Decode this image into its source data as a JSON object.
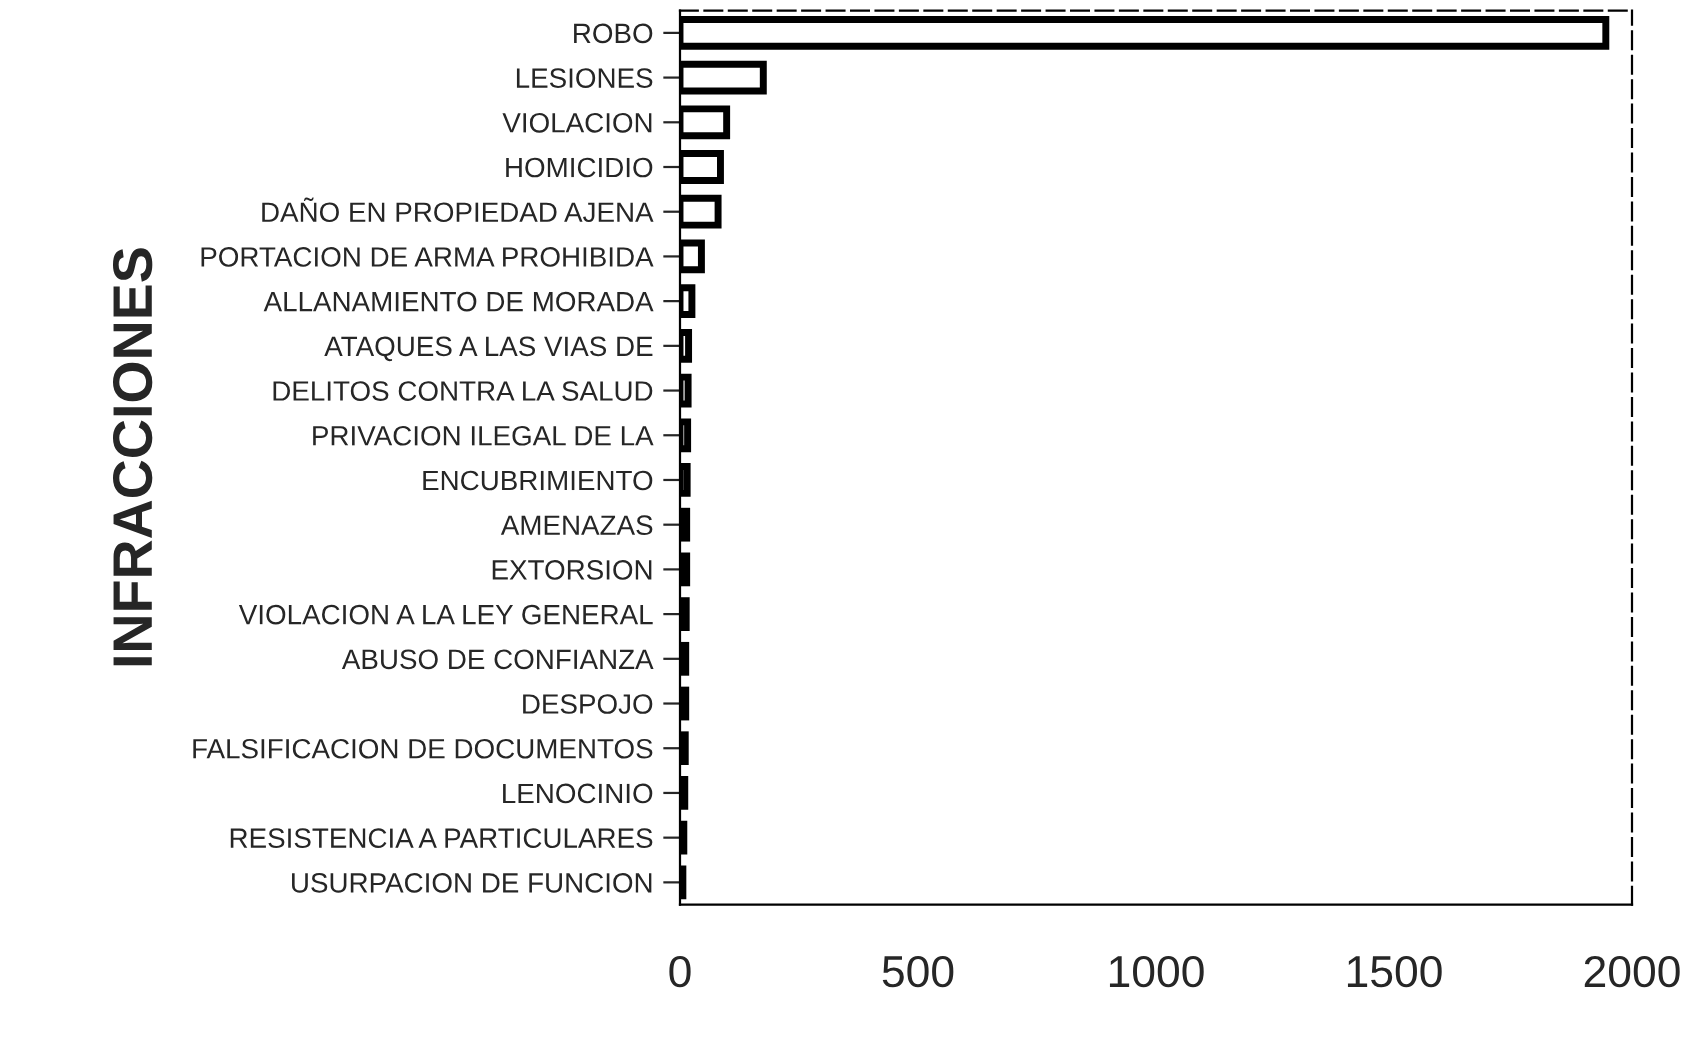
{
  "chart_data": {
    "type": "bar",
    "orientation": "horizontal",
    "ylabel": "INFRACCIONES",
    "categories": [
      "ROBO",
      "LESIONES",
      "VIOLACION",
      "HOMICIDIO",
      "DAÑO EN PROPIEDAD AJENA",
      "PORTACION DE ARMA PROHIBIDA",
      "ALLANAMIENTO DE MORADA",
      "ATAQUES A LAS VIAS DE",
      "DELITOS CONTRA LA SALUD",
      "PRIVACION ILEGAL DE LA",
      "ENCUBRIMIENTO",
      "AMENAZAS",
      "EXTORSION",
      "VIOLACION A LA LEY GENERAL",
      "ABUSO DE CONFIANZA",
      "DESPOJO",
      "FALSIFICACION DE DOCUMENTOS",
      "LENOCINIO",
      "RESISTENCIA A PARTICULARES",
      "USURPACION DE FUNCION"
    ],
    "values": [
      1945,
      175,
      98,
      85,
      80,
      45,
      25,
      18,
      17,
      16,
      15,
      14,
      14,
      13,
      12,
      12,
      11,
      10,
      8,
      6
    ],
    "color": "#ffffff",
    "xlim": [
      0,
      2000
    ],
    "xticks": [
      0,
      500,
      1000,
      1500,
      2000
    ],
    "grid": false,
    "legend": false
  }
}
